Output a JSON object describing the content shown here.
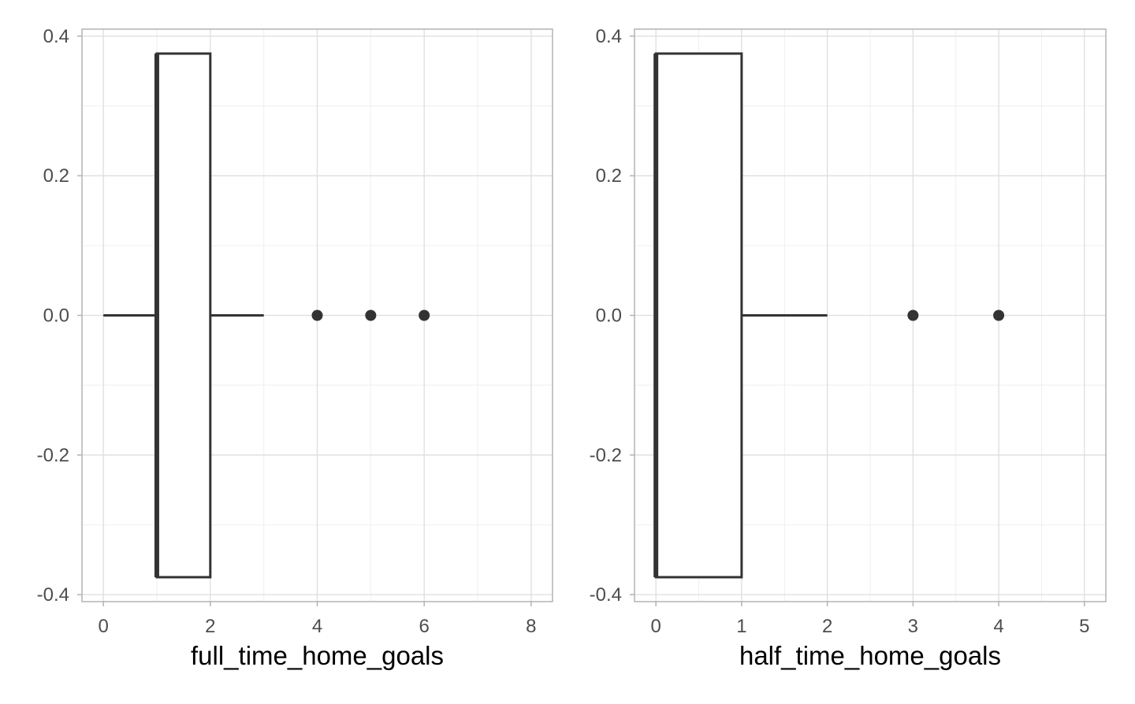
{
  "chart_data": [
    {
      "type": "boxplot",
      "xlabel": "full_time_home_goals",
      "ylabel": "",
      "xlim": [
        -0.4,
        8.4
      ],
      "ylim": [
        -0.41,
        0.41
      ],
      "x_ticks": [
        "0",
        "2",
        "4",
        "6",
        "8"
      ],
      "x_tick_values": [
        0,
        2,
        4,
        6,
        8
      ],
      "y_ticks": [
        "-0.4",
        "-0.2",
        "0.0",
        "0.2",
        "0.4"
      ],
      "y_tick_values": [
        -0.4,
        -0.2,
        0.0,
        0.2,
        0.4
      ],
      "grid": true,
      "box": {
        "min": 0,
        "q1": 1,
        "median": 1,
        "q3": 2,
        "max": 3,
        "y_center": 0.0,
        "half_height": 0.375
      },
      "outliers": [
        4,
        5,
        6
      ]
    },
    {
      "type": "boxplot",
      "xlabel": "half_time_home_goals",
      "ylabel": "",
      "xlim": [
        -0.25,
        5.25
      ],
      "ylim": [
        -0.41,
        0.41
      ],
      "x_ticks": [
        "0",
        "1",
        "2",
        "3",
        "4",
        "5"
      ],
      "x_tick_values": [
        0,
        1,
        2,
        3,
        4,
        5
      ],
      "y_ticks": [
        "-0.4",
        "-0.2",
        "0.0",
        "0.2",
        "0.4"
      ],
      "y_tick_values": [
        -0.4,
        -0.2,
        0.0,
        0.2,
        0.4
      ],
      "grid": true,
      "box": {
        "min": 0,
        "q1": 0,
        "median": 0,
        "q3": 1,
        "max": 2,
        "y_center": 0.0,
        "half_height": 0.375
      },
      "outliers": [
        3,
        4
      ]
    }
  ],
  "colors": {
    "ink": "#333333",
    "grid_major": "#dedede",
    "grid_minor": "#efefef",
    "panel_border": "#b3b3b3",
    "tick_text": "#4d4d4d",
    "label_text": "#000000"
  }
}
